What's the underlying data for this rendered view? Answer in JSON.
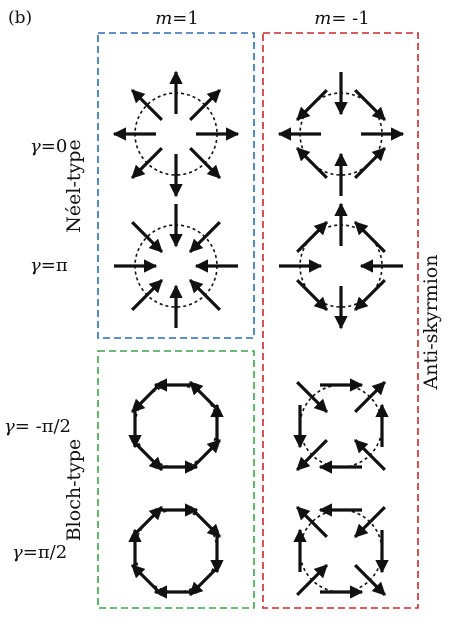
{
  "panel_label": "(b)",
  "columns": [
    {
      "label_var": "m",
      "label_val": "=1"
    },
    {
      "label_var": "m",
      "label_val": "= -1"
    }
  ],
  "rows": [
    {
      "var": "γ",
      "val": "=0"
    },
    {
      "var": "γ",
      "val": "=π"
    },
    {
      "var": "γ",
      "val": "= -π/2"
    },
    {
      "var": "γ",
      "val": "=π/2"
    }
  ],
  "groups": {
    "neel": {
      "label": "Néel-type",
      "color": "#2a6db5"
    },
    "bloch": {
      "label": "Bloch-type",
      "color": "#3aa64a"
    },
    "anti": {
      "label": "Anti-skyrmion",
      "color": "#cc2a2a"
    }
  },
  "spin_textures": [
    {
      "m": 1,
      "gamma": "0",
      "winding": 1,
      "helicity_deg": 0
    },
    {
      "m": -1,
      "gamma": "0",
      "winding": -1,
      "helicity_deg": 0
    },
    {
      "m": 1,
      "gamma": "π",
      "winding": 1,
      "helicity_deg": 180
    },
    {
      "m": -1,
      "gamma": "π",
      "winding": -1,
      "helicity_deg": 180
    },
    {
      "m": 1,
      "gamma": "-π/2",
      "winding": 1,
      "helicity_deg": -90
    },
    {
      "m": -1,
      "gamma": "-π/2",
      "winding": -1,
      "helicity_deg": -90
    },
    {
      "m": 1,
      "gamma": "π/2",
      "winding": 1,
      "helicity_deg": 90
    },
    {
      "m": -1,
      "gamma": "π/2",
      "winding": -1,
      "helicity_deg": 90
    }
  ]
}
